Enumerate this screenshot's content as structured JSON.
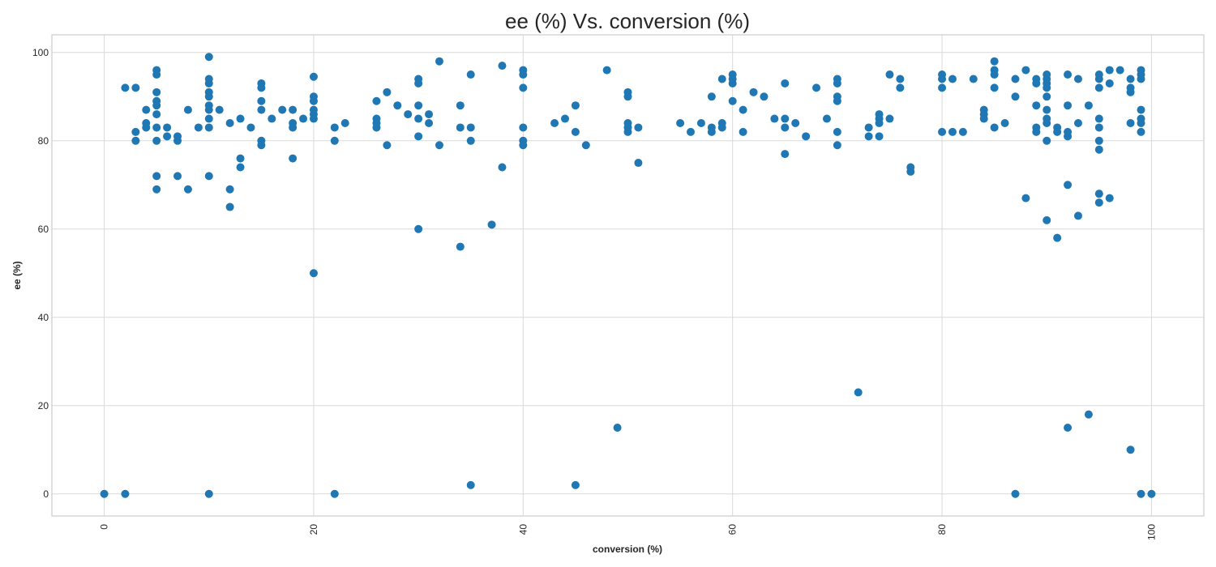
{
  "chart_data": {
    "type": "scatter",
    "title": "ee (%) Vs. conversion (%)",
    "xlabel": "conversion (%)",
    "ylabel": "ee (%)",
    "xlim": [
      -5,
      105
    ],
    "ylim": [
      -5,
      104
    ],
    "x_ticks": [
      0,
      20,
      40,
      60,
      80,
      100
    ],
    "y_ticks": [
      0,
      20,
      40,
      60,
      80,
      100
    ],
    "x_tick_labels": [
      "0",
      "20",
      "40",
      "60",
      "80",
      "100"
    ],
    "y_tick_labels": [
      "0",
      "20",
      "40",
      "60",
      "80",
      "100"
    ],
    "grid": true,
    "legend": false,
    "series": [
      {
        "color": "#1f77b4",
        "points": [
          [
            0,
            0
          ],
          [
            2,
            92
          ],
          [
            2,
            0
          ],
          [
            3,
            92
          ],
          [
            3,
            82
          ],
          [
            3,
            80
          ],
          [
            4,
            87
          ],
          [
            4,
            84
          ],
          [
            4,
            83
          ],
          [
            5,
            96
          ],
          [
            5,
            95
          ],
          [
            5,
            91
          ],
          [
            5,
            89
          ],
          [
            5,
            88
          ],
          [
            5,
            86
          ],
          [
            5,
            83
          ],
          [
            5,
            80
          ],
          [
            5,
            72
          ],
          [
            5,
            69
          ],
          [
            6,
            83
          ],
          [
            6,
            81
          ],
          [
            7,
            81
          ],
          [
            7,
            80
          ],
          [
            7,
            72
          ],
          [
            8,
            87
          ],
          [
            8,
            69
          ],
          [
            9,
            83
          ],
          [
            10,
            99
          ],
          [
            10,
            94
          ],
          [
            10,
            93
          ],
          [
            10,
            91
          ],
          [
            10,
            90
          ],
          [
            10,
            88
          ],
          [
            10,
            87
          ],
          [
            10,
            85
          ],
          [
            10,
            83
          ],
          [
            10,
            72
          ],
          [
            10,
            0
          ],
          [
            11,
            87
          ],
          [
            12,
            84
          ],
          [
            12,
            69
          ],
          [
            12,
            65
          ],
          [
            13,
            85
          ],
          [
            13,
            76
          ],
          [
            13,
            74
          ],
          [
            14,
            83
          ],
          [
            15,
            93
          ],
          [
            15,
            92
          ],
          [
            15,
            89
          ],
          [
            15,
            87
          ],
          [
            15,
            80
          ],
          [
            15,
            79
          ],
          [
            16,
            85
          ],
          [
            17,
            87
          ],
          [
            18,
            87
          ],
          [
            18,
            84
          ],
          [
            18,
            83
          ],
          [
            18,
            76
          ],
          [
            19,
            85
          ],
          [
            20,
            94.5
          ],
          [
            20,
            90
          ],
          [
            20,
            89
          ],
          [
            20,
            87
          ],
          [
            20,
            86
          ],
          [
            20,
            85
          ],
          [
            20,
            50
          ],
          [
            22,
            83
          ],
          [
            22,
            80
          ],
          [
            22,
            0
          ],
          [
            23,
            84
          ],
          [
            26,
            89
          ],
          [
            26,
            85
          ],
          [
            26,
            84
          ],
          [
            26,
            83
          ],
          [
            27,
            91
          ],
          [
            27,
            79
          ],
          [
            28,
            88
          ],
          [
            29,
            86
          ],
          [
            30,
            94
          ],
          [
            30,
            93
          ],
          [
            30,
            88
          ],
          [
            30,
            85
          ],
          [
            30,
            81
          ],
          [
            30,
            60
          ],
          [
            31,
            86
          ],
          [
            31,
            84
          ],
          [
            32,
            98
          ],
          [
            32,
            79
          ],
          [
            34,
            88
          ],
          [
            34,
            83
          ],
          [
            34,
            56
          ],
          [
            35,
            95
          ],
          [
            35,
            83
          ],
          [
            35,
            80
          ],
          [
            35,
            2
          ],
          [
            37,
            61
          ],
          [
            38,
            97
          ],
          [
            38,
            74
          ],
          [
            40,
            96
          ],
          [
            40,
            95
          ],
          [
            40,
            92
          ],
          [
            40,
            83
          ],
          [
            40,
            80
          ],
          [
            40,
            79
          ],
          [
            43,
            84
          ],
          [
            44,
            85
          ],
          [
            45,
            88
          ],
          [
            45,
            82
          ],
          [
            45,
            2
          ],
          [
            46,
            79
          ],
          [
            48,
            96
          ],
          [
            49,
            15
          ],
          [
            50,
            91
          ],
          [
            50,
            90
          ],
          [
            50,
            84
          ],
          [
            50,
            83
          ],
          [
            50,
            82
          ],
          [
            51,
            83
          ],
          [
            51,
            75
          ],
          [
            55,
            84
          ],
          [
            56,
            82
          ],
          [
            57,
            84
          ],
          [
            58,
            90
          ],
          [
            58,
            83
          ],
          [
            58,
            82
          ],
          [
            59,
            94
          ],
          [
            59,
            84
          ],
          [
            59,
            83
          ],
          [
            60,
            95
          ],
          [
            60,
            94
          ],
          [
            60,
            93
          ],
          [
            60,
            89
          ],
          [
            61,
            87
          ],
          [
            61,
            82
          ],
          [
            62,
            91
          ],
          [
            63,
            90
          ],
          [
            64,
            85
          ],
          [
            65,
            93
          ],
          [
            65,
            85
          ],
          [
            65,
            83
          ],
          [
            65,
            77
          ],
          [
            66,
            84
          ],
          [
            67,
            81
          ],
          [
            68,
            92
          ],
          [
            69,
            85
          ],
          [
            70,
            94
          ],
          [
            70,
            93
          ],
          [
            70,
            90
          ],
          [
            70,
            89
          ],
          [
            70,
            82
          ],
          [
            70,
            79
          ],
          [
            72,
            23
          ],
          [
            73,
            83
          ],
          [
            73,
            81
          ],
          [
            74,
            86
          ],
          [
            74,
            85
          ],
          [
            74,
            84
          ],
          [
            74,
            81
          ],
          [
            75,
            95
          ],
          [
            75,
            85
          ],
          [
            76,
            94
          ],
          [
            76,
            92
          ],
          [
            77,
            74
          ],
          [
            77,
            73
          ],
          [
            80,
            95
          ],
          [
            80,
            94
          ],
          [
            80,
            92
          ],
          [
            80,
            82
          ],
          [
            81,
            94
          ],
          [
            81,
            82
          ],
          [
            82,
            82
          ],
          [
            83,
            94
          ],
          [
            84,
            87
          ],
          [
            84,
            86
          ],
          [
            84,
            85
          ],
          [
            85,
            98
          ],
          [
            85,
            96
          ],
          [
            85,
            95
          ],
          [
            85,
            92
          ],
          [
            85,
            83
          ],
          [
            86,
            84
          ],
          [
            87,
            94
          ],
          [
            87,
            90
          ],
          [
            87,
            0
          ],
          [
            88,
            96
          ],
          [
            88,
            67
          ],
          [
            89,
            94
          ],
          [
            89,
            93
          ],
          [
            89,
            88
          ],
          [
            89,
            83
          ],
          [
            89,
            82
          ],
          [
            90,
            95
          ],
          [
            90,
            94
          ],
          [
            90,
            93
          ],
          [
            90,
            92
          ],
          [
            90,
            90
          ],
          [
            90,
            87
          ],
          [
            90,
            85
          ],
          [
            90,
            84
          ],
          [
            90,
            80
          ],
          [
            90,
            62
          ],
          [
            91,
            83
          ],
          [
            91,
            82
          ],
          [
            91,
            58
          ],
          [
            92,
            95
          ],
          [
            92,
            88
          ],
          [
            92,
            82
          ],
          [
            92,
            81
          ],
          [
            92,
            70
          ],
          [
            92,
            15
          ],
          [
            93,
            94
          ],
          [
            93,
            84
          ],
          [
            93,
            63
          ],
          [
            94,
            88
          ],
          [
            94,
            18
          ],
          [
            95,
            95
          ],
          [
            95,
            94
          ],
          [
            95,
            92
          ],
          [
            95,
            85
          ],
          [
            95,
            83
          ],
          [
            95,
            80
          ],
          [
            95,
            78
          ],
          [
            95,
            68
          ],
          [
            95,
            66
          ],
          [
            96,
            96
          ],
          [
            96,
            93
          ],
          [
            96,
            67
          ],
          [
            97,
            96
          ],
          [
            98,
            94
          ],
          [
            98,
            92
          ],
          [
            98,
            91
          ],
          [
            98,
            84
          ],
          [
            98,
            10
          ],
          [
            99,
            96
          ],
          [
            99,
            95
          ],
          [
            99,
            94
          ],
          [
            99,
            87
          ],
          [
            99,
            85
          ],
          [
            99,
            84
          ],
          [
            99,
            82
          ],
          [
            99,
            0
          ],
          [
            100,
            0
          ]
        ]
      }
    ]
  }
}
